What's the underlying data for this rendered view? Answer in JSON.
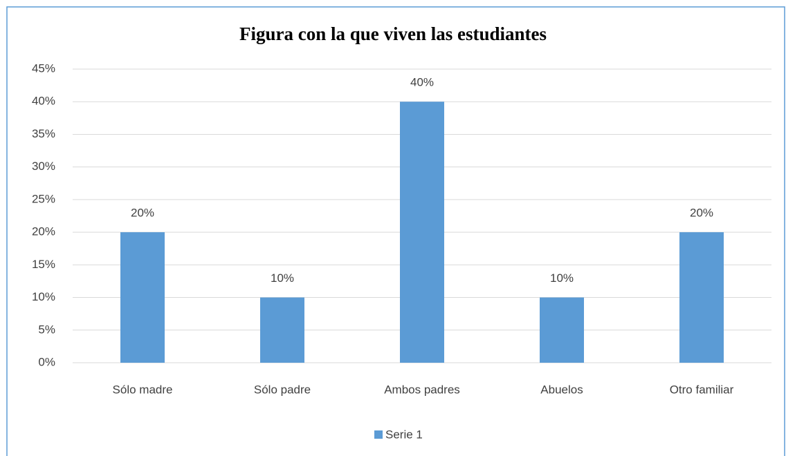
{
  "chart_data": {
    "type": "bar",
    "title": "Figura con la que viven las estudiantes",
    "categories": [
      "Sólo madre",
      "Sólo padre",
      "Ambos padres",
      "Abuelos",
      "Otro familiar"
    ],
    "series": [
      {
        "name": "Serie 1",
        "color": "#5b9bd5",
        "values": [
          20,
          10,
          40,
          10,
          20
        ],
        "value_labels": [
          "20%",
          "10%",
          "40%",
          "10%",
          "20%"
        ]
      }
    ],
    "ylim": [
      0,
      45
    ],
    "yticks": [
      {
        "value": 0,
        "label": "0%"
      },
      {
        "value": 5,
        "label": "5%"
      },
      {
        "value": 10,
        "label": "10%"
      },
      {
        "value": 15,
        "label": "15%"
      },
      {
        "value": 20,
        "label": "20%"
      },
      {
        "value": 25,
        "label": "25%"
      },
      {
        "value": 30,
        "label": "30%"
      },
      {
        "value": 35,
        "label": "35%"
      },
      {
        "value": 40,
        "label": "40%"
      },
      {
        "value": 45,
        "label": "45%"
      }
    ],
    "grid": true,
    "legend": "bottom"
  }
}
